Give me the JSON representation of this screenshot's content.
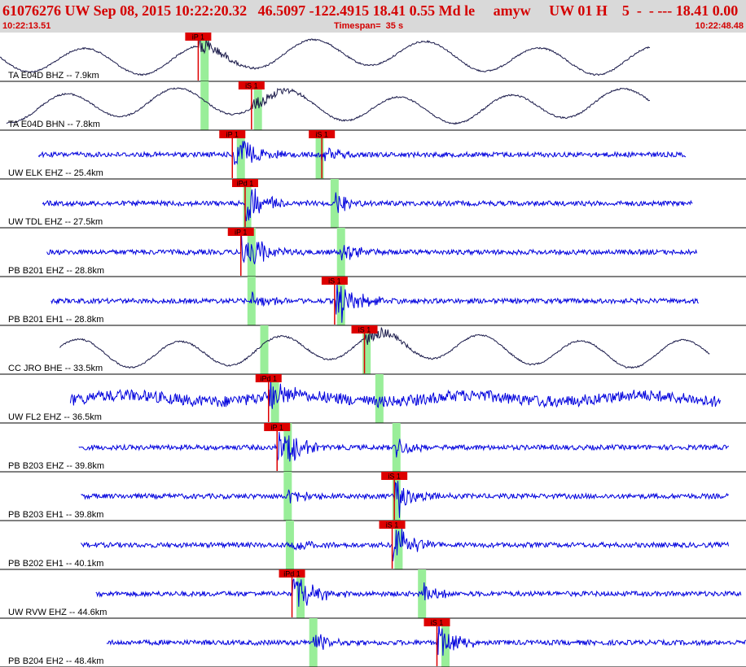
{
  "header": {
    "title": "61076276 UW Sep 08, 2015 10:22:20.32   46.5097 -122.4915 18.41 0.55 Md le     amyw     UW 01 H    5  -  - --- 18.41 0.00",
    "start_time": "10:22:13.51",
    "timespan": "Timespan=  35 s",
    "end_time": "10:22:48.48"
  },
  "colors": {
    "header_bg": "#d9d9d9",
    "header_text": "#d40000",
    "trace_blue": "#0000dd",
    "trace_dark": "#1a1a4a",
    "pick_red": "#dd0000",
    "predicted_green": "#99ee99"
  },
  "chart_data": {
    "type": "seismogram",
    "time_range": [
      0,
      35
    ],
    "time_unit": "s",
    "traces": [
      {
        "label": "TA E04D BHZ -- 7.9km",
        "style": "long_period",
        "start": 0.0,
        "end": 30.5,
        "picks": [
          {
            "label": "iP 1",
            "t": 9.3
          }
        ],
        "predicted": [
          9.6
        ]
      },
      {
        "label": "TA E04D BHN -- 7.8km",
        "style": "long_period",
        "start": 0.3,
        "end": 30.5,
        "picks": [
          {
            "label": "iS 1",
            "t": 11.8
          }
        ],
        "predicted": [
          9.6,
          12.1
        ]
      },
      {
        "label": "UW ELK EHZ -- 25.4km",
        "style": "short_period",
        "start": 1.8,
        "end": 32.2,
        "picks": [
          {
            "label": "iP 1",
            "t": 10.9
          },
          {
            "label": "iS 1",
            "t": 15.1
          }
        ],
        "predicted": [
          11.3,
          15.0
        ]
      },
      {
        "label": "UW TDL EHZ -- 27.5km",
        "style": "short_period",
        "start": 2.0,
        "end": 32.5,
        "picks": [
          {
            "label": "iPd 1",
            "t": 11.5
          }
        ],
        "predicted": [
          11.6,
          15.7
        ]
      },
      {
        "label": "PB B201 EHZ -- 28.8km",
        "style": "short_period",
        "start": 2.2,
        "end": 32.7,
        "picks": [
          {
            "label": "iP 1",
            "t": 11.3
          }
        ],
        "predicted": [
          11.8,
          16.0
        ]
      },
      {
        "label": "PB B201 EH1 -- 28.8km",
        "style": "short_period",
        "start": 2.4,
        "end": 32.8,
        "picks": [
          {
            "label": "iS 1",
            "t": 15.7
          }
        ],
        "predicted": [
          11.8,
          16.0
        ]
      },
      {
        "label": "CC JRO BHE -- 33.5km",
        "style": "long_period",
        "start": 2.8,
        "end": 33.3,
        "picks": [
          {
            "label": "iS 1",
            "t": 17.1
          }
        ],
        "predicted": [
          12.4,
          17.2
        ]
      },
      {
        "label": "UW FL2 EHZ -- 36.5km",
        "style": "noisy_long",
        "start": 3.3,
        "end": 33.8,
        "picks": [
          {
            "label": "iPd 1",
            "t": 12.6
          }
        ],
        "predicted": [
          12.9,
          17.8
        ]
      },
      {
        "label": "PB B203 EHZ -- 39.8km",
        "style": "short_period",
        "start": 3.7,
        "end": 34.2,
        "picks": [
          {
            "label": "iP 1",
            "t": 13.0
          }
        ],
        "predicted": [
          13.5,
          18.6
        ]
      },
      {
        "label": "PB B203 EH1 -- 39.8km",
        "style": "short_period",
        "start": 3.8,
        "end": 34.2,
        "picks": [
          {
            "label": "iS 1",
            "t": 18.5
          }
        ],
        "predicted": [
          13.5,
          18.6
        ]
      },
      {
        "label": "PB B202 EH1 -- 40.1km",
        "style": "short_period",
        "start": 3.8,
        "end": 34.2,
        "picks": [
          {
            "label": "iS 1",
            "t": 18.4
          }
        ],
        "predicted": [
          13.6,
          18.7
        ]
      },
      {
        "label": "UW RVW EHZ -- 44.6km",
        "style": "short_period",
        "start": 4.5,
        "end": 34.8,
        "picks": [
          {
            "label": "iPd 1",
            "t": 13.7
          }
        ],
        "predicted": [
          14.1,
          19.8
        ]
      },
      {
        "label": "PB B204 EH2 -- 48.4km",
        "style": "short_period",
        "start": 5.0,
        "end": 35.0,
        "picks": [
          {
            "label": "iS 1",
            "t": 20.5
          }
        ],
        "predicted": [
          14.7,
          20.9
        ]
      }
    ]
  }
}
